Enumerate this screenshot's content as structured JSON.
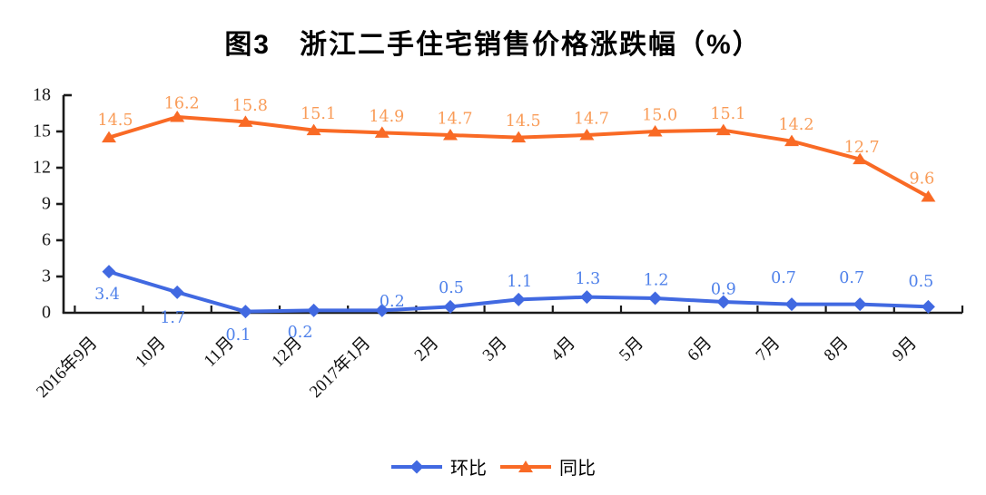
{
  "chart_data": {
    "type": "line",
    "title": "图3　浙江二手住宅销售价格涨跌幅（%）",
    "categories": [
      "2016年9月",
      "10月",
      "11月",
      "12月",
      "2017年1月",
      "2月",
      "3月",
      "4月",
      "5月",
      "6月",
      "7月",
      "8月",
      "9月"
    ],
    "series": [
      {
        "name": "环比",
        "marker": "diamond",
        "color": "#4169E1",
        "label_color": "#4f81ea",
        "values": [
          3.4,
          1.7,
          0.1,
          0.2,
          0.2,
          0.5,
          1.1,
          1.3,
          1.2,
          0.9,
          0.7,
          0.7,
          0.5
        ],
        "labels": [
          "3.4",
          "1.7",
          "0.1",
          "0.2",
          "0.2",
          "0.5",
          "1.1",
          "1.3",
          "1.2",
          "0.9",
          "0.7",
          "0.7",
          "0.5"
        ]
      },
      {
        "name": "同比",
        "marker": "triangle",
        "color": "#F96A25",
        "label_color": "#F99C58",
        "values": [
          14.5,
          16.2,
          15.8,
          15.1,
          14.9,
          14.7,
          14.5,
          14.7,
          15.0,
          15.1,
          14.2,
          12.7,
          9.6
        ],
        "labels": [
          "14.5",
          "16.2",
          "15.8",
          "15.1",
          "14.9",
          "14.7",
          "14.5",
          "14.7",
          "15.0",
          "15.1",
          "14.2",
          "12.7",
          "9.6"
        ]
      }
    ],
    "y_ticks": [
      0,
      3,
      6,
      9,
      12,
      15,
      18
    ],
    "ylim": [
      0,
      18
    ],
    "xlabel": "",
    "ylabel": "",
    "grid": false,
    "legend_position": "bottom",
    "axis_color": "#1a1a1a"
  }
}
